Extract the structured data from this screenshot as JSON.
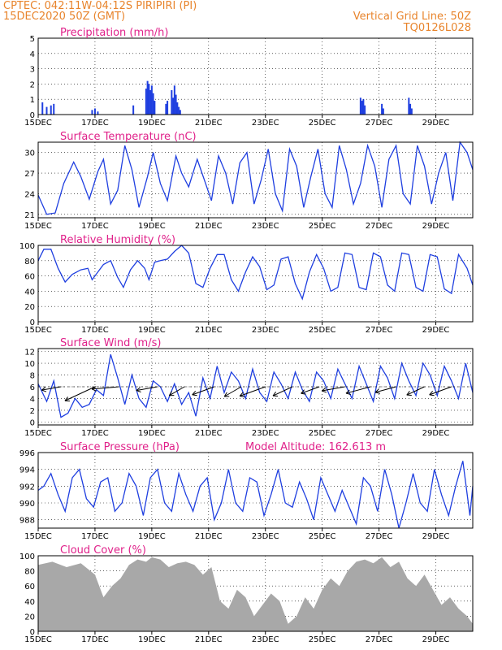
{
  "header": {
    "left_line1": "CPTEC:   042:11W-04:12S   PIRIPIRI (PI)",
    "left_line2": "15DEC2020 50Z (GMT)",
    "right_line1": "Vertical Grid Line: 50Z",
    "right_line2": "TQ0126L028"
  },
  "colors": {
    "title": "#e0218a",
    "header": "#e8842c",
    "line": "#1f3fe0",
    "cloud": "#a8a8a8",
    "wind_arrow": "#000000"
  },
  "x_axis": {
    "tick_labels": [
      "15DEC",
      "17DEC",
      "19DEC",
      "21DEC",
      "23DEC",
      "25DEC",
      "27DEC",
      "29DEC"
    ],
    "tick_days": [
      0,
      2,
      4,
      6,
      8,
      10,
      12,
      14
    ],
    "range_days": [
      0,
      15.3
    ]
  },
  "chart_data": [
    {
      "type": "bar",
      "title": "Precipitation (mm/h)",
      "ylim": [
        0,
        5
      ],
      "yticks": [
        0,
        1,
        2,
        3,
        4,
        5
      ],
      "x_days": [
        0.15,
        0.3,
        0.45,
        0.55,
        1.9,
        2.0,
        2.1,
        3.35,
        3.8,
        3.85,
        3.9,
        3.95,
        4.0,
        4.05,
        4.1,
        4.5,
        4.55,
        4.7,
        4.75,
        4.8,
        4.85,
        4.9,
        4.95,
        5.0,
        11.35,
        11.4,
        11.45,
        11.5,
        12.1,
        12.15,
        13.05,
        13.1,
        13.15
      ],
      "values": [
        0.8,
        0.5,
        0.6,
        0.7,
        0.3,
        0.4,
        0.2,
        0.6,
        1.7,
        2.2,
        2.0,
        1.6,
        1.9,
        1.4,
        0.9,
        0.7,
        0.9,
        1.6,
        1.1,
        1.9,
        1.3,
        0.8,
        0.5,
        0.3,
        1.1,
        0.9,
        1.0,
        0.6,
        0.7,
        0.4,
        1.1,
        0.7,
        0.4
      ]
    },
    {
      "type": "line",
      "title": "Surface Temperature (nC)",
      "ylim": [
        20.5,
        31.5
      ],
      "yticks": [
        21,
        24,
        27,
        30
      ],
      "x_days": [
        0,
        0.3,
        0.6,
        0.9,
        1.25,
        1.5,
        1.8,
        2.1,
        2.3,
        2.55,
        2.8,
        3.05,
        3.3,
        3.55,
        3.85,
        4.05,
        4.3,
        4.55,
        4.85,
        5.05,
        5.3,
        5.6,
        5.85,
        6.1,
        6.35,
        6.6,
        6.85,
        7.1,
        7.35,
        7.6,
        7.85,
        8.1,
        8.35,
        8.6,
        8.85,
        9.1,
        9.35,
        9.6,
        9.85,
        10.1,
        10.35,
        10.6,
        10.85,
        11.1,
        11.35,
        11.6,
        11.85,
        12.1,
        12.35,
        12.6,
        12.85,
        13.1,
        13.35,
        13.6,
        13.85,
        14.1,
        14.35,
        14.6,
        14.85,
        15.1,
        15.3
      ],
      "values": [
        23.8,
        21.0,
        21.2,
        25.5,
        28.6,
        26.5,
        23.2,
        27.2,
        29.0,
        22.5,
        24.5,
        31.0,
        27.5,
        22.0,
        26.5,
        30.0,
        25.5,
        23.0,
        29.5,
        27.0,
        25.0,
        29.0,
        26.0,
        23.0,
        29.5,
        27.0,
        22.5,
        28.5,
        30.0,
        22.5,
        26.0,
        30.5,
        24.0,
        21.5,
        30.5,
        28.0,
        22.0,
        26.5,
        30.5,
        24.0,
        22.0,
        31.0,
        27.5,
        22.5,
        25.5,
        31.0,
        28.0,
        22.0,
        29.0,
        31.0,
        24.0,
        22.5,
        31.0,
        28.0,
        22.5,
        27.0,
        30.0,
        23.0,
        31.5,
        30.0,
        27.5
      ]
    },
    {
      "type": "line",
      "title": "Relative Humidity (%)",
      "ylim": [
        0,
        100
      ],
      "yticks": [
        0,
        20,
        40,
        60,
        80,
        100
      ],
      "x_days": [
        0,
        0.2,
        0.45,
        0.7,
        0.95,
        1.2,
        1.5,
        1.75,
        1.9,
        2.1,
        2.3,
        2.55,
        2.8,
        3.0,
        3.25,
        3.5,
        3.75,
        3.9,
        4.1,
        4.3,
        4.55,
        4.8,
        5.05,
        5.3,
        5.55,
        5.8,
        6.05,
        6.3,
        6.55,
        6.8,
        7.05,
        7.3,
        7.55,
        7.8,
        8.05,
        8.3,
        8.55,
        8.8,
        9.05,
        9.3,
        9.55,
        9.8,
        10.05,
        10.3,
        10.55,
        10.8,
        11.05,
        11.3,
        11.55,
        11.8,
        12.05,
        12.3,
        12.55,
        12.8,
        13.05,
        13.3,
        13.55,
        13.8,
        14.05,
        14.3,
        14.55,
        14.8,
        15.1,
        15.3
      ],
      "values": [
        80,
        95,
        95,
        70,
        52,
        62,
        68,
        70,
        55,
        65,
        75,
        80,
        58,
        45,
        68,
        80,
        70,
        55,
        78,
        80,
        82,
        92,
        100,
        90,
        50,
        45,
        70,
        88,
        88,
        55,
        40,
        65,
        85,
        72,
        42,
        48,
        82,
        85,
        50,
        30,
        65,
        88,
        70,
        40,
        45,
        90,
        88,
        45,
        42,
        90,
        85,
        48,
        40,
        90,
        88,
        45,
        40,
        88,
        85,
        43,
        37,
        88,
        70,
        48
      ]
    },
    {
      "type": "line",
      "title": "Surface Wind (m/s)",
      "ylim": [
        -0.5,
        12.5
      ],
      "yticks": [
        0,
        2,
        4,
        6,
        8,
        10,
        12
      ],
      "x_days": [
        0,
        0.3,
        0.55,
        0.8,
        1.05,
        1.3,
        1.55,
        1.8,
        2.05,
        2.3,
        2.55,
        2.8,
        3.05,
        3.3,
        3.55,
        3.8,
        4.05,
        4.3,
        4.55,
        4.8,
        5.05,
        5.3,
        5.55,
        5.8,
        6.05,
        6.3,
        6.55,
        6.8,
        7.05,
        7.3,
        7.55,
        7.8,
        8.05,
        8.3,
        8.55,
        8.8,
        9.05,
        9.3,
        9.55,
        9.8,
        10.05,
        10.3,
        10.55,
        10.8,
        11.05,
        11.3,
        11.55,
        11.8,
        12.05,
        12.3,
        12.55,
        12.8,
        13.05,
        13.3,
        13.55,
        13.8,
        14.05,
        14.3,
        14.55,
        14.8,
        15.05,
        15.3
      ],
      "values": [
        6.5,
        3.5,
        7.0,
        0.8,
        1.5,
        4.0,
        2.5,
        3.0,
        5.5,
        4.5,
        11.5,
        7.5,
        3.0,
        8.0,
        4.0,
        2.5,
        7.0,
        6.0,
        3.5,
        6.5,
        3.0,
        5.0,
        1.0,
        7.5,
        4.0,
        9.5,
        5.0,
        8.5,
        7.0,
        4.0,
        9.0,
        5.0,
        3.5,
        8.5,
        6.5,
        4.0,
        8.5,
        5.5,
        3.5,
        8.5,
        7.0,
        4.0,
        9.0,
        6.5,
        4.0,
        9.5,
        6.5,
        3.5,
        9.5,
        7.5,
        4.0,
        10.0,
        7.0,
        4.5,
        10.0,
        8.0,
        4.5,
        9.5,
        7.0,
        4.0,
        10.0,
        5.0
      ],
      "arrows_x_days": [
        0.8,
        2.0,
        2.85,
        4.2,
        5.15,
        6.2,
        7.15,
        8.0,
        8.95,
        9.9,
        10.8,
        11.7,
        12.6,
        13.6,
        14.55
      ],
      "arrows_dir_deg": [
        -170,
        -155,
        -175,
        -170,
        -150,
        -160,
        -150,
        -160,
        -155,
        -160,
        -170,
        -165,
        -165,
        -155,
        -160
      ],
      "arrows_len": [
        0.5,
        0.85,
        0.7,
        0.55,
        0.45,
        0.6,
        0.5,
        0.7,
        0.55,
        0.5,
        0.6,
        0.65,
        0.55,
        0.5,
        0.6
      ]
    },
    {
      "type": "line",
      "title": "Surface Pressure (hPa)",
      "annotation": "Model Altitude: 162.613 m",
      "ylim": [
        987,
        996
      ],
      "yticks": [
        988,
        990,
        992,
        994,
        996
      ],
      "x_days": [
        0,
        0.2,
        0.45,
        0.7,
        0.95,
        1.2,
        1.45,
        1.7,
        1.95,
        2.2,
        2.45,
        2.7,
        2.95,
        3.2,
        3.45,
        3.7,
        3.95,
        4.2,
        4.45,
        4.7,
        4.95,
        5.2,
        5.45,
        5.7,
        5.95,
        6.2,
        6.45,
        6.7,
        6.95,
        7.2,
        7.45,
        7.7,
        7.95,
        8.2,
        8.45,
        8.7,
        8.95,
        9.2,
        9.45,
        9.7,
        9.95,
        10.2,
        10.45,
        10.7,
        10.95,
        11.2,
        11.45,
        11.7,
        11.95,
        12.2,
        12.45,
        12.7,
        12.95,
        13.2,
        13.45,
        13.7,
        13.95,
        14.2,
        14.45,
        14.7,
        14.95,
        15.2,
        15.3
      ],
      "values": [
        991.5,
        992.0,
        993.5,
        991.0,
        989.0,
        993.0,
        994.0,
        990.5,
        989.5,
        992.5,
        993.0,
        989.0,
        990.0,
        993.5,
        992.0,
        988.5,
        993.0,
        994.0,
        990.0,
        989.0,
        993.5,
        991.0,
        989.0,
        992.0,
        993.0,
        988.0,
        990.0,
        994.0,
        990.0,
        989.0,
        993.0,
        992.5,
        988.5,
        991.0,
        994.0,
        990.0,
        989.5,
        992.5,
        990.5,
        988.0,
        993.0,
        991.0,
        989.0,
        991.5,
        989.5,
        987.5,
        993.0,
        992.0,
        989.0,
        994.0,
        991.0,
        987.0,
        990.0,
        993.5,
        990.0,
        989.0,
        994.0,
        991.0,
        988.5,
        992.0,
        995.0,
        988.5,
        992.0
      ]
    },
    {
      "type": "area",
      "title": "Cloud Cover (%)",
      "ylim": [
        0,
        100
      ],
      "yticks": [
        0,
        20,
        40,
        60,
        80,
        100
      ],
      "x_days": [
        0,
        0.5,
        1.0,
        1.5,
        2.0,
        2.3,
        2.6,
        2.9,
        3.2,
        3.5,
        3.8,
        4.0,
        4.3,
        4.6,
        4.9,
        5.2,
        5.5,
        5.8,
        6.1,
        6.4,
        6.7,
        7.0,
        7.3,
        7.6,
        7.9,
        8.2,
        8.5,
        8.8,
        9.1,
        9.4,
        9.7,
        10.0,
        10.3,
        10.6,
        10.9,
        11.2,
        11.5,
        11.8,
        12.1,
        12.4,
        12.7,
        13.0,
        13.3,
        13.6,
        13.9,
        14.2,
        14.5,
        14.8,
        15.1,
        15.3
      ],
      "values": [
        88,
        92,
        85,
        90,
        75,
        45,
        60,
        70,
        88,
        95,
        92,
        98,
        95,
        85,
        90,
        92,
        88,
        75,
        85,
        40,
        30,
        55,
        45,
        20,
        35,
        50,
        40,
        10,
        20,
        45,
        30,
        55,
        70,
        60,
        80,
        92,
        95,
        90,
        98,
        85,
        92,
        70,
        60,
        75,
        55,
        35,
        45,
        30,
        20,
        10
      ]
    }
  ]
}
